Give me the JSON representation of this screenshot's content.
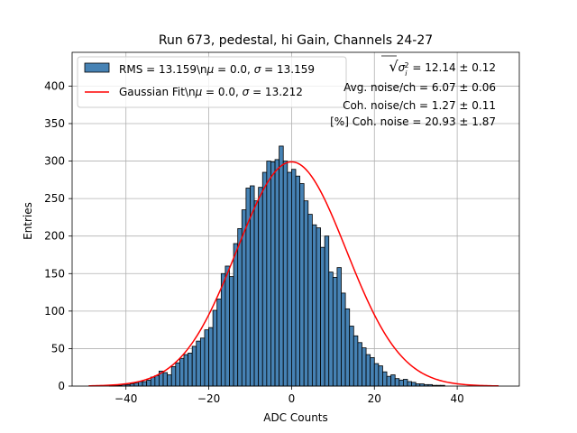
{
  "chart_data": {
    "type": "bar",
    "title": "Run 673, pedestal, hi Gain, Channels 24-27",
    "xlabel": "ADC Counts",
    "ylabel": "Entries",
    "xlim": [
      -53,
      55
    ],
    "ylim": [
      0,
      445
    ],
    "xticks": [
      -40,
      -20,
      0,
      20,
      40
    ],
    "xtick_labels": [
      "−40",
      "−20",
      "0",
      "20",
      "40"
    ],
    "yticks": [
      0,
      50,
      100,
      150,
      200,
      250,
      300,
      350,
      400
    ],
    "grid": true,
    "legend_placement": "top-left",
    "bin_width": 1,
    "bin_start": -49,
    "counts": [
      0,
      0,
      0,
      0,
      0,
      1,
      1,
      1,
      2,
      2,
      3,
      4,
      6,
      6,
      8,
      12,
      14,
      20,
      18,
      15,
      26,
      31,
      37,
      42,
      44,
      53,
      60,
      64,
      75,
      78,
      101,
      116,
      150,
      160,
      146,
      190,
      210,
      235,
      264,
      267,
      247,
      265,
      285,
      300,
      299,
      302,
      320,
      300,
      285,
      289,
      280,
      270,
      247,
      229,
      215,
      211,
      185,
      200,
      152,
      145,
      158,
      124,
      103,
      80,
      67,
      58,
      51,
      42,
      38,
      30,
      27,
      19,
      13,
      15,
      10,
      8,
      9,
      6,
      5,
      3,
      3,
      2,
      2,
      1,
      1,
      1,
      0,
      0,
      0,
      0,
      0,
      0,
      0,
      0,
      0,
      0,
      0,
      0,
      0
    ],
    "series": [
      {
        "name": "RMS = 13.159\\nμ = 0.0, σ = 13.159",
        "kind": "hist",
        "color": "#4682b4",
        "edge": "#000000"
      },
      {
        "name": "Gaussian Fit\\nμ = 0.0, σ = 13.212",
        "kind": "line",
        "color": "#ff0000",
        "mu": 0.0,
        "sigma": 13.212,
        "amplitude": 299,
        "x_range": [
          -49,
          50
        ]
      }
    ],
    "legend": {
      "hist_label_plain": "RMS = 13.159\\n",
      "hist_label_mu": "μ",
      "hist_label_mid": " = 0.0, ",
      "hist_label_sigma": "σ",
      "hist_label_end": " = 13.159",
      "fit_label_plain": "Gaussian Fit\\n",
      "fit_label_mu": "μ",
      "fit_label_mid": " = 0.0, ",
      "fit_label_sigma": "σ",
      "fit_label_end": " = 13.212"
    },
    "stats": {
      "line1_prefix": "√",
      "line1_sigma": "σ",
      "line1_sub": "i",
      "line1_sup": "2",
      "line1_value": " = 12.14 ± 0.12",
      "line2": "Avg. noise/ch = 6.07 ± 0.06",
      "line3": "Coh. noise/ch = 1.27 ± 0.11",
      "line4": "[%] Coh. noise = 20.93 ± 1.87"
    },
    "colors": {
      "bar_fill": "#4682b4",
      "bar_edge": "#000000",
      "fit_line": "#ff0000",
      "grid": "#b0b0b0"
    }
  }
}
